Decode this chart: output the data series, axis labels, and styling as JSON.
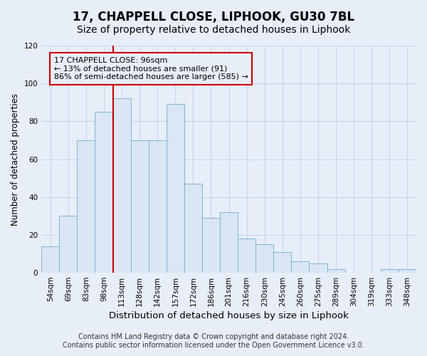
{
  "title": "17, CHAPPELL CLOSE, LIPHOOK, GU30 7BL",
  "subtitle": "Size of property relative to detached houses in Liphook",
  "xlabel": "Distribution of detached houses by size in Liphook",
  "ylabel": "Number of detached properties",
  "bin_labels": [
    "54sqm",
    "69sqm",
    "83sqm",
    "98sqm",
    "113sqm",
    "128sqm",
    "142sqm",
    "157sqm",
    "172sqm",
    "186sqm",
    "201sqm",
    "216sqm",
    "230sqm",
    "245sqm",
    "260sqm",
    "275sqm",
    "289sqm",
    "304sqm",
    "319sqm",
    "333sqm",
    "348sqm"
  ],
  "bar_values": [
    14,
    30,
    70,
    85,
    92,
    70,
    70,
    89,
    47,
    29,
    32,
    18,
    15,
    11,
    6,
    5,
    2,
    0,
    0,
    2,
    2
  ],
  "bar_color": "#dae6f3",
  "bar_edge_color": "#7fb3d3",
  "vline_x": 3.5,
  "vline_color": "#cc0000",
  "annotation_text": "17 CHAPPELL CLOSE: 96sqm\n← 13% of detached houses are smaller (91)\n86% of semi-detached houses are larger (585) →",
  "annotation_box_edge": "#cc0000",
  "ylim": [
    0,
    120
  ],
  "yticks": [
    0,
    20,
    40,
    60,
    80,
    100,
    120
  ],
  "footer_line1": "Contains HM Land Registry data © Crown copyright and database right 2024.",
  "footer_line2": "Contains public sector information licensed under the Open Government Licence v3.0.",
  "bg_color": "#e8eef8",
  "plot_bg_color": "#e8eef8",
  "grid_color": "#c8d4e8",
  "title_fontsize": 12,
  "subtitle_fontsize": 10,
  "xlabel_fontsize": 9.5,
  "ylabel_fontsize": 8.5,
  "tick_fontsize": 7.5,
  "footer_fontsize": 7,
  "annot_fontsize": 8
}
